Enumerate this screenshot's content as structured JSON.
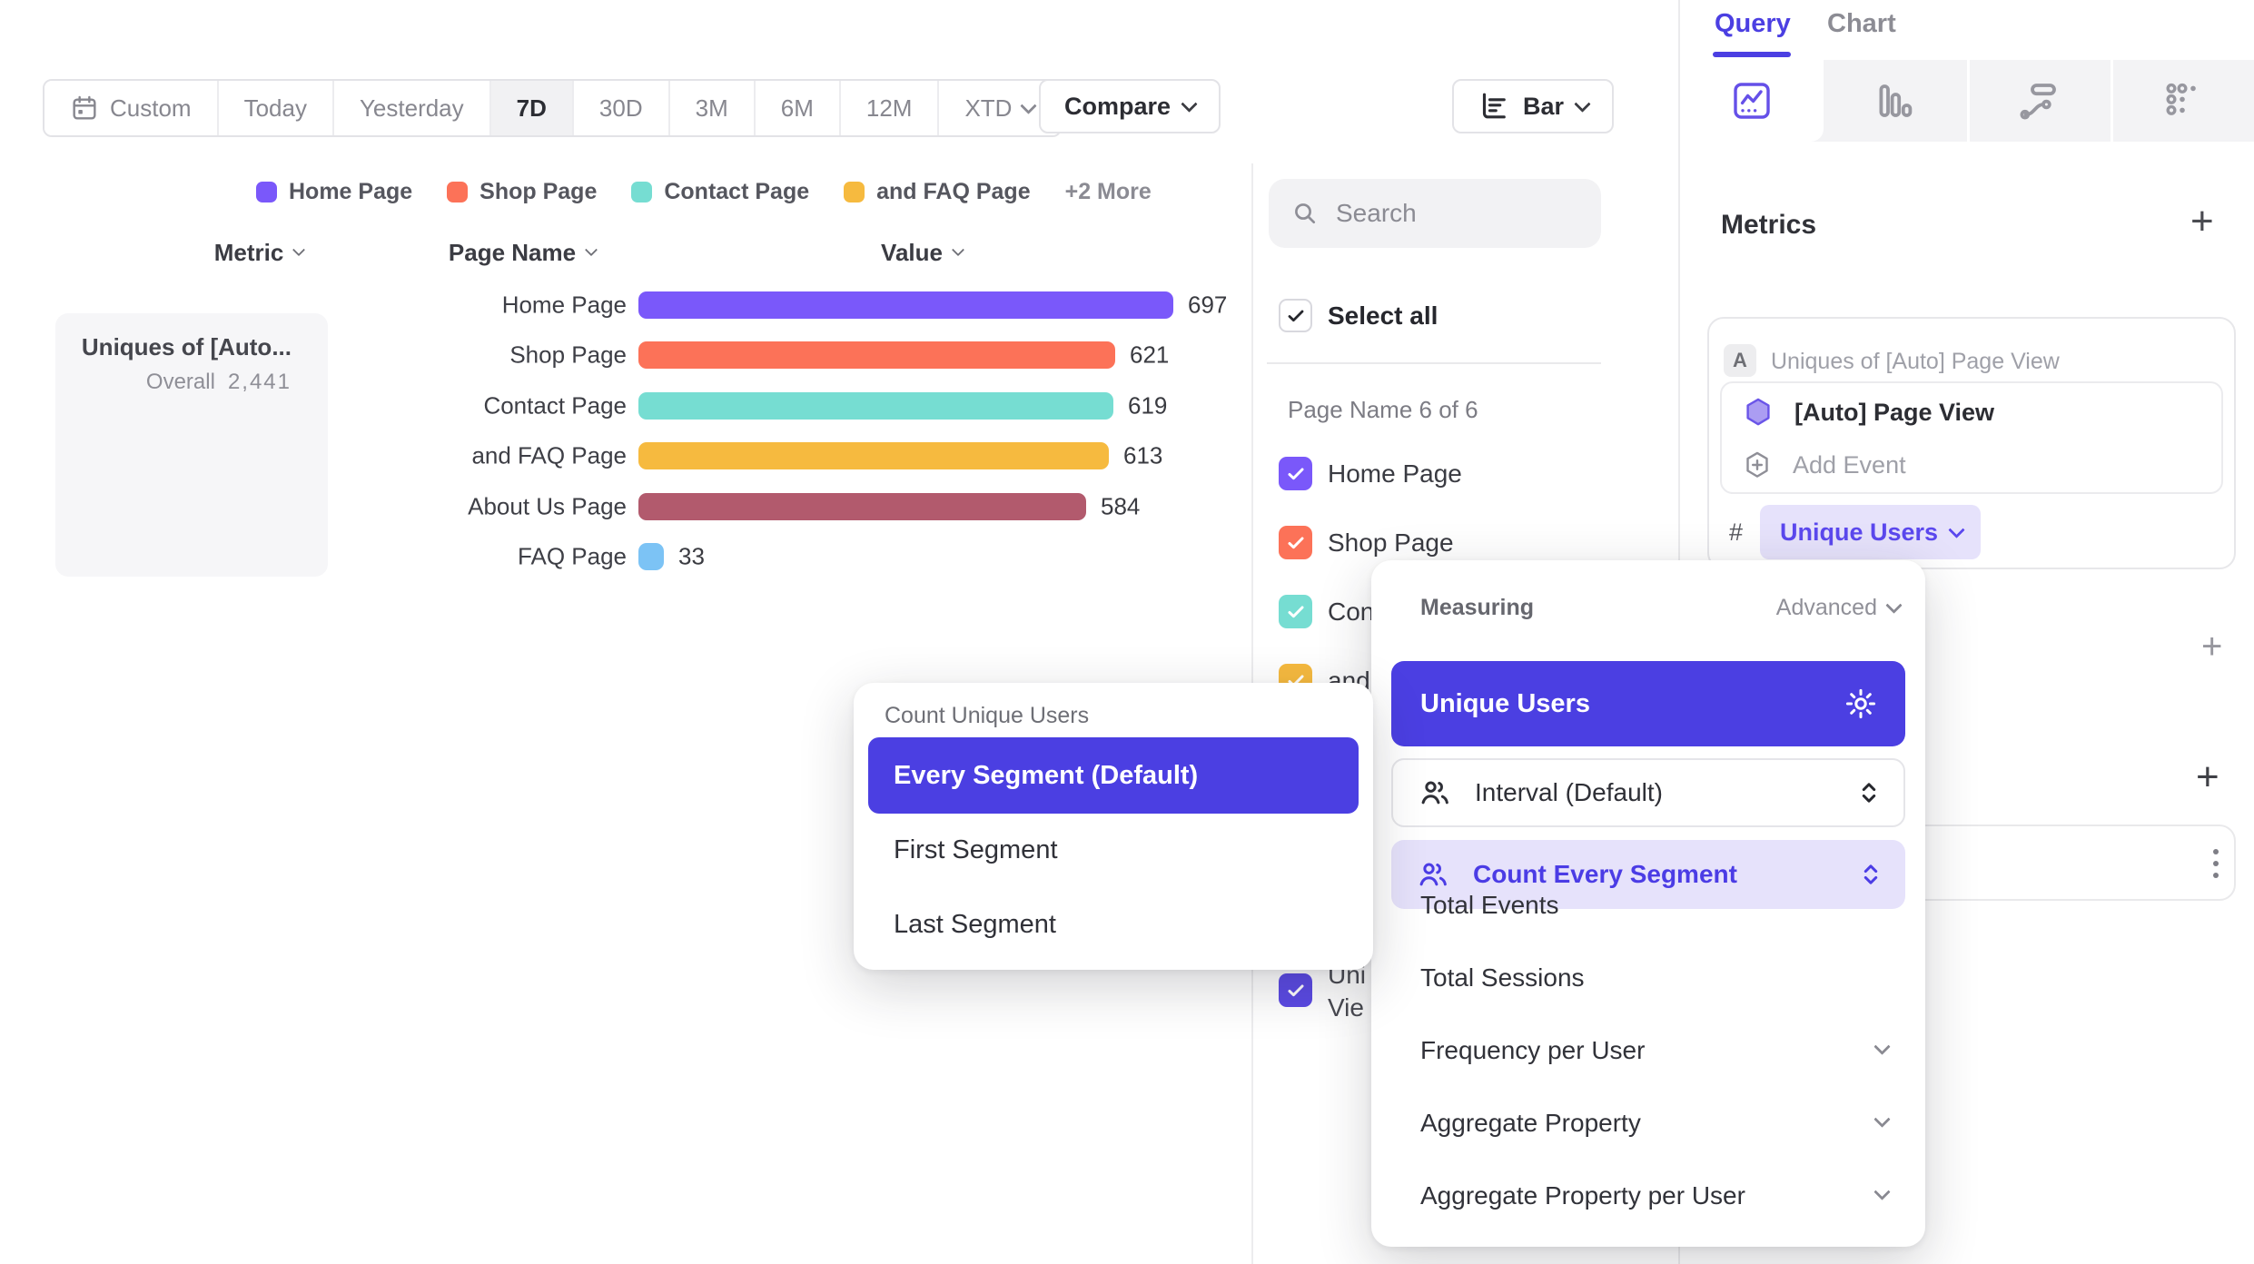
{
  "toolbar": {
    "date_ranges": [
      "Custom",
      "Today",
      "Yesterday",
      "7D",
      "30D",
      "3M",
      "6M",
      "12M",
      "XTD"
    ],
    "selected_range": "7D",
    "compare_label": "Compare",
    "chart_type_label": "Bar"
  },
  "legend": {
    "items": [
      {
        "label": "Home Page",
        "color": "#7A58FA"
      },
      {
        "label": "Shop Page",
        "color": "#FC7258"
      },
      {
        "label": "Contact Page",
        "color": "#76DDD2"
      },
      {
        "label": "and FAQ Page",
        "color": "#F6BA3F"
      }
    ],
    "more_label": "+2 More"
  },
  "table_headers": {
    "metric": "Metric",
    "page_name": "Page Name",
    "value": "Value"
  },
  "metric_summary": {
    "title": "Uniques of [Auto...",
    "overall_label": "Overall",
    "overall_value": "2,441"
  },
  "chart_data": {
    "type": "bar",
    "orientation": "horizontal",
    "title": "Uniques of [Auto] Page View",
    "xlabel": "Value",
    "ylabel": "Page Name",
    "categories": [
      "Home Page",
      "Shop Page",
      "Contact Page",
      "and FAQ Page",
      "About Us Page",
      "FAQ Page"
    ],
    "values": [
      697,
      621,
      619,
      613,
      584,
      33
    ],
    "colors": [
      "#7A58FA",
      "#FC7258",
      "#76DDD2",
      "#F6BA3F",
      "#B25A6D",
      "#7CC3F5"
    ],
    "overall_total": 2441,
    "value_range": [
      0,
      697
    ],
    "grid": false,
    "data_labels": true
  },
  "sidebar": {
    "search_placeholder": "Search",
    "select_all_label": "Select all",
    "section_label": "Page Name 6 of 6",
    "items": [
      {
        "label": "Home Page",
        "color": "#7A58FA",
        "checked": true
      },
      {
        "label": "Shop Page",
        "color": "#FC7258",
        "checked": true
      },
      {
        "label": "Contact Page",
        "color": "#76DDD2",
        "checked": true
      },
      {
        "label": "and FAQ Page",
        "color": "#F6BA3F",
        "checked": true
      },
      {
        "label": "About Us Page",
        "color": "#B25A6D",
        "checked": true
      },
      {
        "label": "FAQ Page",
        "color": "#7CC3F5",
        "checked": true
      }
    ],
    "extra_item": {
      "line1": "Uni",
      "line2": "Vie",
      "color": "#5B4AE4",
      "checked": true
    }
  },
  "panel": {
    "tabs": {
      "query": "Query",
      "chart": "Chart",
      "active": "Query"
    },
    "view_icons": [
      "insights-icon",
      "bar-chart-icon",
      "flows-icon",
      "retention-grid-icon"
    ],
    "metrics_title": "Metrics",
    "add_metric_label": "+",
    "metric": {
      "badge": "A",
      "title": "Uniques of [Auto] Page View",
      "event_name": "[Auto] Page View",
      "add_event_label": "Add Event",
      "hash": "#",
      "aggregation": "Unique Users"
    },
    "add_filter_label": "+",
    "add_breakdown_label": "+"
  },
  "measuring_popover": {
    "title": "Measuring",
    "advanced_label": "Advanced",
    "selected": "Unique Users",
    "interval_label": "Interval (Default)",
    "count_segment_label": "Count Every Segment",
    "simple_options": [
      "Total Events",
      "Total Sessions"
    ],
    "expandable_options": [
      "Frequency per User",
      "Aggregate Property",
      "Aggregate Property per User"
    ]
  },
  "count_popover": {
    "title": "Count Unique Users",
    "selected": "Every Segment (Default)",
    "options": [
      "First Segment",
      "Last Segment"
    ]
  },
  "colors": {
    "accent": "#4B3FE2",
    "accent_light_bg": "#E6E2FB",
    "selected_row": "#4B3FE2",
    "panel_border": "#EBEBED",
    "muted_text": "#8B8B93"
  }
}
